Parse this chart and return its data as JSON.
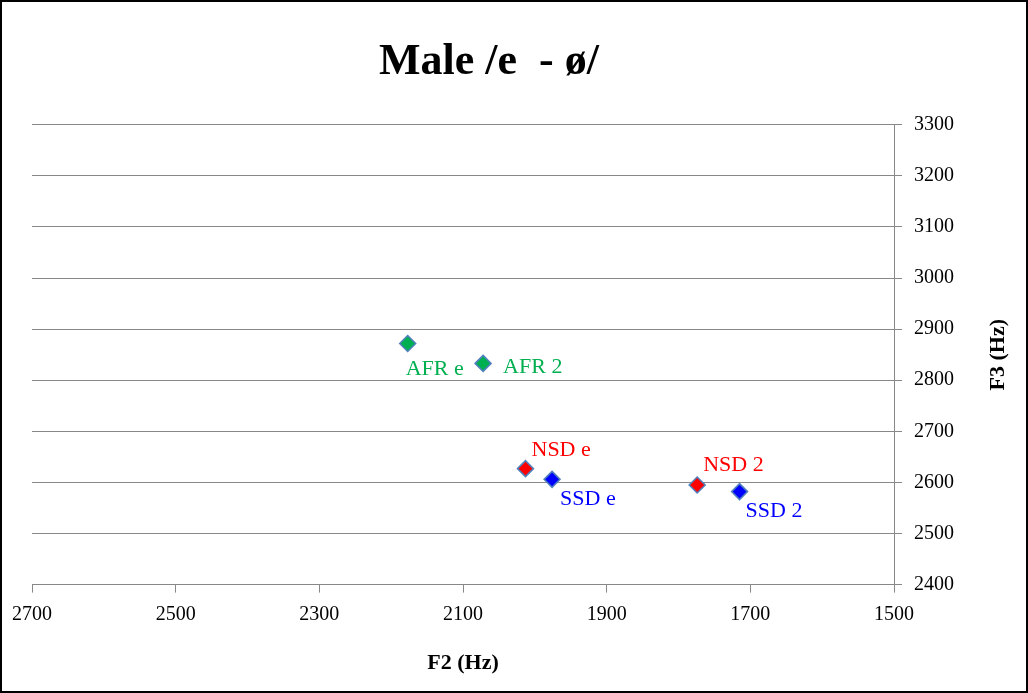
{
  "chart_data": {
    "type": "scatter",
    "title": "Male /e  - ø/",
    "xlabel": "F2 (Hz)",
    "ylabel": "F3 (Hz)",
    "xlim": [
      2700,
      1500
    ],
    "xticks": [
      2700,
      2500,
      2300,
      2100,
      1900,
      1700,
      1500
    ],
    "ylim": [
      2400,
      3300
    ],
    "yticks": [
      2400,
      2500,
      2600,
      2700,
      2800,
      2900,
      3000,
      3100,
      3200,
      3300
    ],
    "grid": "y",
    "legend": false,
    "marker": "diamond",
    "series": [
      {
        "name": "AFR e",
        "color": "#00b050",
        "x": [
          2177
        ],
        "values": [
          2872
        ]
      },
      {
        "name": "AFR 2",
        "color": "#00b050",
        "x": [
          2072
        ],
        "values": [
          2833
        ]
      },
      {
        "name": "NSD e",
        "color": "#ff0000",
        "x": [
          2013
        ],
        "values": [
          2627
        ]
      },
      {
        "name": "SSD e",
        "color": "#0000ff",
        "x": [
          1976
        ],
        "values": [
          2606
        ]
      },
      {
        "name": "NSD 2",
        "color": "#ff0000",
        "x": [
          1774
        ],
        "values": [
          2595
        ]
      },
      {
        "name": "SSD 2",
        "color": "#0000ff",
        "x": [
          1715
        ],
        "values": [
          2582
        ]
      }
    ]
  }
}
